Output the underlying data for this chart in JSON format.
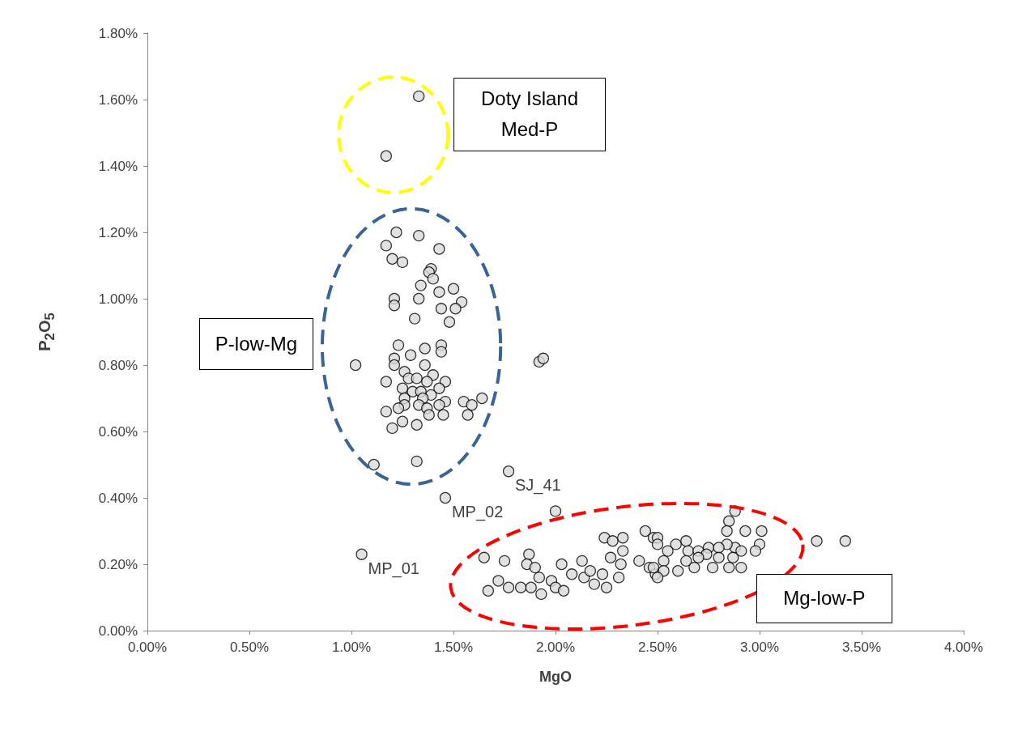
{
  "chart_data": {
    "type": "scatter",
    "xlabel": "MgO",
    "ylabel": "P$_{2}$O$_{5}$",
    "marker": "circle",
    "xlim": [
      0,
      4
    ],
    "ylim": [
      0,
      1.8
    ],
    "xticks": [
      {
        "value": 0,
        "label": "0.00%"
      },
      {
        "value": 0.5,
        "label": "0.50%"
      },
      {
        "value": 1,
        "label": "1.00%"
      },
      {
        "value": 1.5,
        "label": "1.50%"
      },
      {
        "value": 2,
        "label": "2.00%"
      },
      {
        "value": 2.5,
        "label": "2.50%"
      },
      {
        "value": 3,
        "label": "3.00%"
      },
      {
        "value": 3.5,
        "label": "3.50%"
      },
      {
        "value": 4,
        "label": "4.00%"
      }
    ],
    "yticks": [
      {
        "value": 0,
        "label": "0.00%"
      },
      {
        "value": 0.2,
        "label": "0.20%"
      },
      {
        "value": 0.4,
        "label": "0.40%"
      },
      {
        "value": 0.6,
        "label": "0.60%"
      },
      {
        "value": 0.8,
        "label": "0.80%"
      },
      {
        "value": 1,
        "label": "1.00%"
      },
      {
        "value": 1.2,
        "label": "1.20%"
      },
      {
        "value": 1.4,
        "label": "1.40%"
      },
      {
        "value": 1.6,
        "label": "1.60%"
      },
      {
        "value": 1.8,
        "label": "1.80%"
      }
    ],
    "annotations": [
      "Doty Island Med-P",
      "P-low-Mg",
      "Mg-low-P",
      {
        "text": "SJ_41",
        "x": 1.77,
        "y": 0.48
      },
      {
        "text": "MP_02",
        "x": 1.46,
        "y": 0.4
      },
      {
        "text": "MP_01",
        "x": 1.05,
        "y": 0.23
      }
    ],
    "series": [
      {
        "color": "#d9d9d9",
        "x": [
          1.33,
          1.17,
          1.22,
          1.33,
          1.17,
          1.2,
          1.25,
          1.43,
          1.39,
          1.38,
          1.4,
          1.34,
          1.5,
          1.43,
          1.21,
          1.21,
          1.33,
          1.54,
          1.44,
          1.51,
          1.31,
          1.48,
          1.23,
          1.44,
          1.44,
          1.36,
          1.29,
          1.21,
          1.21,
          1.02,
          1.36,
          1.26,
          1.4,
          1.28,
          1.17,
          1.32,
          1.37,
          1.25,
          1.46,
          1.43,
          1.3,
          1.34,
          1.39,
          1.26,
          1.35,
          1.46,
          1.43,
          1.33,
          1.26,
          1.23,
          1.37,
          1.55,
          1.64,
          1.59,
          1.57,
          1.45,
          1.38,
          1.17,
          1.25,
          1.32,
          1.2,
          1.11,
          1.32,
          1.92,
          1.94,
          1.77,
          1.46,
          1.05,
          2.0,
          1.65,
          1.75,
          1.87,
          1.86,
          1.9,
          1.67,
          1.72,
          1.77,
          1.83,
          1.88,
          1.93,
          1.92,
          1.98,
          2.0,
          2.04,
          2.03,
          2.08,
          2.13,
          2.14,
          2.19,
          2.25,
          2.24,
          2.28,
          2.33,
          2.27,
          2.32,
          2.23,
          2.31,
          2.33,
          2.44,
          2.48,
          2.41,
          2.46,
          2.49,
          2.17,
          2.88,
          2.85,
          2.84,
          2.93,
          3.01,
          3.28,
          3.42,
          3.0,
          2.98,
          2.88,
          2.91,
          2.84,
          2.75,
          2.8,
          2.64,
          2.59,
          2.5,
          2.5,
          2.55,
          2.65,
          2.7,
          2.74,
          2.64,
          2.7,
          2.8,
          2.87,
          2.53,
          2.48,
          2.53,
          2.6,
          2.68,
          2.77,
          2.85,
          2.91,
          2.5
        ],
        "values": [
          1.61,
          1.43,
          1.2,
          1.19,
          1.16,
          1.12,
          1.11,
          1.15,
          1.09,
          1.08,
          1.06,
          1.04,
          1.03,
          1.02,
          1.0,
          0.98,
          1.0,
          0.99,
          0.97,
          0.97,
          0.94,
          0.93,
          0.86,
          0.86,
          0.84,
          0.85,
          0.83,
          0.82,
          0.8,
          0.8,
          0.8,
          0.78,
          0.77,
          0.76,
          0.75,
          0.76,
          0.75,
          0.73,
          0.75,
          0.73,
          0.72,
          0.72,
          0.71,
          0.7,
          0.7,
          0.69,
          0.68,
          0.68,
          0.68,
          0.67,
          0.67,
          0.69,
          0.7,
          0.68,
          0.65,
          0.65,
          0.65,
          0.66,
          0.63,
          0.62,
          0.61,
          0.5,
          0.51,
          0.81,
          0.82,
          0.48,
          0.4,
          0.23,
          0.36,
          0.22,
          0.21,
          0.23,
          0.2,
          0.19,
          0.12,
          0.15,
          0.13,
          0.13,
          0.13,
          0.11,
          0.16,
          0.15,
          0.13,
          0.12,
          0.2,
          0.17,
          0.21,
          0.16,
          0.14,
          0.13,
          0.28,
          0.27,
          0.28,
          0.22,
          0.2,
          0.17,
          0.16,
          0.24,
          0.3,
          0.28,
          0.21,
          0.19,
          0.17,
          0.18,
          0.36,
          0.33,
          0.3,
          0.3,
          0.3,
          0.27,
          0.27,
          0.26,
          0.24,
          0.25,
          0.24,
          0.26,
          0.25,
          0.25,
          0.27,
          0.26,
          0.28,
          0.26,
          0.24,
          0.24,
          0.24,
          0.23,
          0.21,
          0.22,
          0.22,
          0.22,
          0.21,
          0.19,
          0.18,
          0.18,
          0.19,
          0.19,
          0.19,
          0.19,
          0.16
        ]
      }
    ]
  }
}
